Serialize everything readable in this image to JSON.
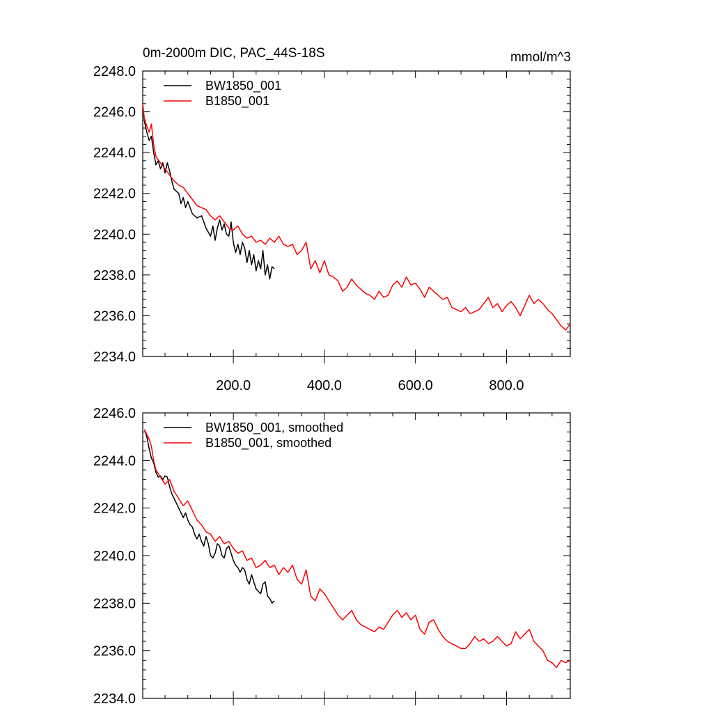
{
  "figure": {
    "title": "0m-2000m DIC, PAC_44S-18S",
    "units": "mmol/m^3"
  },
  "chart_data": [
    {
      "type": "line",
      "xlim": [
        1,
        940
      ],
      "ylim": [
        2234.0,
        2248.0
      ],
      "yticks": [
        2234.0,
        2236.0,
        2238.0,
        2240.0,
        2242.0,
        2244.0,
        2246.0,
        2248.0
      ],
      "ytick_labels": [
        "2234.0",
        "2236.0",
        "2238.0",
        "2240.0",
        "2242.0",
        "2244.0",
        "2246.0",
        "2248.0"
      ],
      "xticks": [
        200,
        400,
        600,
        800
      ],
      "xtick_labels": [
        "200.0",
        "400.0",
        "600.0",
        "800.0"
      ],
      "legend_position": "top-left",
      "series": [
        {
          "name": "BW1850_001",
          "color": "#000000",
          "x": [
            1,
            5,
            10,
            15,
            20,
            25,
            30,
            35,
            40,
            45,
            50,
            55,
            60,
            65,
            70,
            75,
            80,
            85,
            90,
            95,
            100,
            110,
            120,
            130,
            140,
            150,
            155,
            160,
            165,
            170,
            175,
            180,
            185,
            190,
            195,
            200,
            205,
            210,
            215,
            220,
            225,
            230,
            235,
            240,
            245,
            250,
            255,
            260,
            265,
            270,
            275,
            280,
            285,
            290
          ],
          "y": [
            2246.2,
            2245.5,
            2245.0,
            2244.6,
            2244.8,
            2244.0,
            2243.4,
            2243.6,
            2243.2,
            2243.5,
            2243.0,
            2243.5,
            2243.1,
            2242.6,
            2242.2,
            2242.1,
            2242.0,
            2241.5,
            2241.8,
            2241.3,
            2241.6,
            2241.0,
            2240.8,
            2240.9,
            2240.3,
            2239.9,
            2240.4,
            2239.7,
            2240.3,
            2240.7,
            2240.2,
            2240.5,
            2240.0,
            2239.9,
            2240.6,
            2239.6,
            2239.1,
            2239.5,
            2239.0,
            2239.6,
            2239.3,
            2238.6,
            2239.2,
            2238.5,
            2239.0,
            2238.2,
            2238.7,
            2238.3,
            2239.2,
            2238.0,
            2238.5,
            2237.8,
            2238.4,
            2238.3
          ]
        },
        {
          "name": "B1850_001",
          "color": "#ff0000",
          "x": [
            1,
            5,
            10,
            15,
            20,
            25,
            30,
            40,
            50,
            60,
            70,
            80,
            90,
            100,
            110,
            120,
            130,
            140,
            150,
            160,
            170,
            180,
            190,
            200,
            210,
            220,
            230,
            240,
            250,
            260,
            270,
            280,
            290,
            300,
            310,
            320,
            330,
            340,
            350,
            360,
            370,
            380,
            390,
            400,
            410,
            420,
            430,
            440,
            450,
            460,
            470,
            480,
            490,
            500,
            510,
            520,
            530,
            540,
            550,
            560,
            570,
            580,
            590,
            600,
            610,
            620,
            630,
            640,
            650,
            660,
            670,
            680,
            690,
            700,
            710,
            720,
            730,
            740,
            750,
            760,
            770,
            780,
            790,
            800,
            810,
            820,
            830,
            840,
            850,
            860,
            870,
            880,
            890,
            900,
            910,
            920,
            930,
            940
          ],
          "y": [
            2246.4,
            2245.6,
            2245.3,
            2245.0,
            2245.4,
            2244.4,
            2243.8,
            2243.5,
            2243.2,
            2242.9,
            2242.6,
            2242.4,
            2242.3,
            2242.0,
            2241.7,
            2241.4,
            2241.3,
            2241.2,
            2240.9,
            2240.7,
            2240.9,
            2240.6,
            2240.3,
            2240.2,
            2240.4,
            2240.0,
            2239.8,
            2239.9,
            2239.6,
            2239.7,
            2239.5,
            2239.8,
            2239.6,
            2239.9,
            2239.5,
            2239.4,
            2239.5,
            2239.0,
            2239.2,
            2239.6,
            2238.3,
            2238.7,
            2238.1,
            2238.7,
            2238.0,
            2237.9,
            2237.7,
            2237.2,
            2237.4,
            2237.8,
            2237.5,
            2237.3,
            2237.1,
            2237.0,
            2236.8,
            2237.2,
            2236.9,
            2237.0,
            2237.5,
            2237.7,
            2237.4,
            2237.9,
            2237.5,
            2237.6,
            2237.3,
            2236.9,
            2237.4,
            2237.2,
            2237.0,
            2236.8,
            2236.9,
            2236.4,
            2236.3,
            2236.2,
            2236.4,
            2236.1,
            2236.2,
            2236.3,
            2236.6,
            2236.9,
            2236.4,
            2236.6,
            2236.2,
            2236.5,
            2236.7,
            2236.4,
            2236.0,
            2236.5,
            2237.0,
            2236.6,
            2236.8,
            2236.6,
            2236.3,
            2236.1,
            2235.8,
            2235.5,
            2235.3,
            2235.6
          ]
        }
      ]
    },
    {
      "type": "line",
      "xlim": [
        1,
        940
      ],
      "ylim": [
        2234.0,
        2246.0
      ],
      "yticks": [
        2234.0,
        2236.0,
        2238.0,
        2240.0,
        2242.0,
        2244.0,
        2246.0
      ],
      "ytick_labels": [
        "2234.0",
        "2236.0",
        "2238.0",
        "2240.0",
        "2242.0",
        "2244.0",
        "2246.0"
      ],
      "xticks": [
        200,
        400,
        600,
        800
      ],
      "xtick_labels": [],
      "legend_position": "top-left",
      "series": [
        {
          "name": "BW1850_001, smoothed",
          "color": "#000000",
          "x": [
            5,
            10,
            15,
            20,
            25,
            30,
            35,
            40,
            45,
            50,
            55,
            60,
            65,
            70,
            75,
            80,
            85,
            90,
            95,
            100,
            105,
            110,
            115,
            120,
            125,
            130,
            135,
            140,
            145,
            150,
            155,
            160,
            165,
            170,
            175,
            180,
            185,
            190,
            195,
            200,
            205,
            210,
            215,
            220,
            225,
            230,
            235,
            240,
            245,
            250,
            255,
            260,
            265,
            270,
            275,
            280,
            285,
            290
          ],
          "y": [
            2245.3,
            2245.0,
            2244.5,
            2244.1,
            2243.9,
            2243.5,
            2243.3,
            2243.35,
            2243.2,
            2243.35,
            2243.3,
            2242.9,
            2242.6,
            2242.4,
            2242.2,
            2242.0,
            2241.8,
            2241.6,
            2241.8,
            2241.5,
            2241.3,
            2241.2,
            2240.9,
            2240.7,
            2240.9,
            2240.6,
            2240.4,
            2240.8,
            2240.5,
            2240.0,
            2239.9,
            2240.1,
            2240.5,
            2240.4,
            2240.0,
            2239.9,
            2240.3,
            2240.4,
            2240.1,
            2239.8,
            2239.6,
            2239.5,
            2239.3,
            2239.5,
            2239.4,
            2239.0,
            2238.8,
            2239.2,
            2238.9,
            2238.6,
            2238.5,
            2238.4,
            2238.8,
            2238.9,
            2238.3,
            2238.2,
            2238.0,
            2238.1
          ]
        },
        {
          "name": "B1850_001, smoothed",
          "color": "#ff0000",
          "x": [
            5,
            10,
            15,
            20,
            25,
            30,
            40,
            50,
            60,
            70,
            80,
            90,
            100,
            110,
            120,
            130,
            140,
            150,
            160,
            170,
            180,
            190,
            200,
            210,
            220,
            230,
            240,
            250,
            260,
            270,
            280,
            290,
            300,
            310,
            320,
            330,
            340,
            350,
            360,
            370,
            380,
            390,
            400,
            410,
            420,
            430,
            440,
            450,
            460,
            470,
            480,
            490,
            500,
            510,
            520,
            530,
            540,
            550,
            560,
            570,
            580,
            590,
            600,
            610,
            620,
            630,
            640,
            650,
            660,
            670,
            680,
            690,
            700,
            710,
            720,
            730,
            740,
            750,
            760,
            770,
            780,
            790,
            800,
            810,
            820,
            830,
            840,
            850,
            860,
            870,
            880,
            890,
            900,
            910,
            920,
            930,
            940
          ],
          "y": [
            2245.3,
            2245.1,
            2244.9,
            2244.6,
            2244.0,
            2243.6,
            2243.3,
            2243.0,
            2243.2,
            2242.7,
            2242.4,
            2242.1,
            2242.3,
            2241.9,
            2241.5,
            2241.3,
            2241.0,
            2240.9,
            2240.6,
            2240.8,
            2240.5,
            2240.6,
            2240.3,
            2240.1,
            2240.2,
            2239.8,
            2239.9,
            2239.5,
            2239.6,
            2239.8,
            2239.5,
            2239.6,
            2239.2,
            2239.5,
            2239.3,
            2239.6,
            2239.0,
            2238.8,
            2239.4,
            2238.3,
            2238.1,
            2238.6,
            2238.4,
            2238.1,
            2237.8,
            2237.5,
            2237.3,
            2237.5,
            2237.7,
            2237.3,
            2237.1,
            2237.0,
            2236.9,
            2236.8,
            2237.0,
            2236.9,
            2237.2,
            2237.5,
            2237.7,
            2237.4,
            2237.6,
            2237.3,
            2237.5,
            2236.9,
            2236.7,
            2237.2,
            2237.3,
            2236.9,
            2236.6,
            2236.4,
            2236.3,
            2236.2,
            2236.1,
            2236.1,
            2236.3,
            2236.6,
            2236.4,
            2236.5,
            2236.3,
            2236.4,
            2236.6,
            2236.4,
            2236.2,
            2236.3,
            2236.8,
            2236.5,
            2236.7,
            2236.9,
            2236.4,
            2236.2,
            2236.0,
            2235.6,
            2235.5,
            2235.3,
            2235.6,
            2235.5,
            2235.6
          ]
        }
      ]
    }
  ]
}
